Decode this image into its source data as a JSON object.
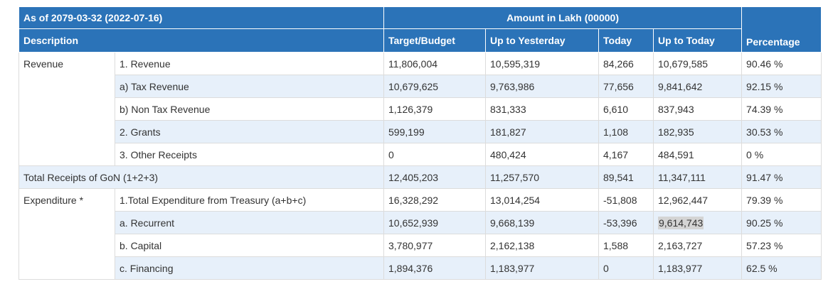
{
  "header": {
    "as_of": "As of 2079-03-32 (2022-07-16)",
    "amount_unit": "Amount in Lakh (00000)",
    "description": "Description",
    "target": "Target/Budget",
    "up_to_yesterday": "Up to Yesterday",
    "today": "Today",
    "up_to_today": "Up to Today",
    "percentage": "Percentage"
  },
  "revenue": {
    "label": "Revenue",
    "rows": [
      {
        "item": "1. Revenue",
        "target": "11,806,004",
        "yesterday": "10,595,319",
        "today": "84,266",
        "up_to_today": "10,679,585",
        "pct": "90.46 %"
      },
      {
        "item": "a) Tax Revenue",
        "target": "10,679,625",
        "yesterday": "9,763,986",
        "today": "77,656",
        "up_to_today": "9,841,642",
        "pct": "92.15 %"
      },
      {
        "item": "b) Non Tax Revenue",
        "target": "1,126,379",
        "yesterday": "831,333",
        "today": "6,610",
        "up_to_today": "837,943",
        "pct": "74.39 %"
      },
      {
        "item": "2. Grants",
        "target": "599,199",
        "yesterday": "181,827",
        "today": "1,108",
        "up_to_today": "182,935",
        "pct": "30.53 %"
      },
      {
        "item": "3. Other Receipts",
        "target": "0",
        "yesterday": "480,424",
        "today": "4,167",
        "up_to_today": "484,591",
        "pct": "0 %"
      }
    ]
  },
  "total": {
    "label": "Total Receipts of GoN (1+2+3)",
    "target": "12,405,203",
    "yesterday": "11,257,570",
    "today": "89,541",
    "up_to_today": "11,347,111",
    "pct": "91.47 %"
  },
  "expenditure": {
    "label": "Expenditure *",
    "rows": [
      {
        "item": "1.Total Expenditure from Treasury (a+b+c)",
        "target": "16,328,292",
        "yesterday": "13,014,254",
        "today": "-51,808",
        "up_to_today": "12,962,447",
        "pct": "79.39 %"
      },
      {
        "item": "a. Recurrent",
        "target": "10,652,939",
        "yesterday": "9,668,139",
        "today": "-53,396",
        "up_to_today": "9,614,743",
        "pct": "90.25 %"
      },
      {
        "item": "b. Capital",
        "target": "3,780,977",
        "yesterday": "2,162,138",
        "today": "1,588",
        "up_to_today": "2,163,727",
        "pct": "57.23 %"
      },
      {
        "item": "c. Financing",
        "target": "1,894,376",
        "yesterday": "1,183,977",
        "today": "0",
        "up_to_today": "1,183,977",
        "pct": "62.5 %"
      }
    ]
  },
  "colors": {
    "header_bg": "#2b73b8",
    "alt_row_bg": "#e7f0fa",
    "highlight_bg": "#d4d4d4"
  }
}
